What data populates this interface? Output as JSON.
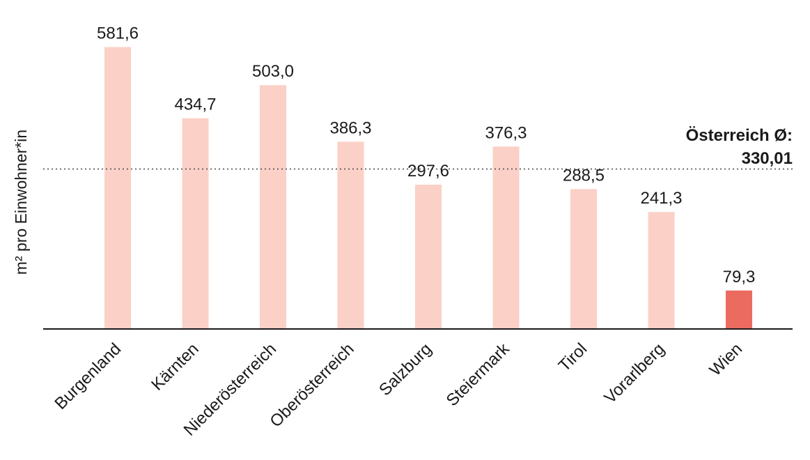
{
  "chart_data": {
    "type": "bar",
    "categories": [
      "Burgenland",
      "Kärnten",
      "Niederösterreich",
      "Oberösterreich",
      "Salzburg",
      "Steiermark",
      "Tirol",
      "Vorarlberg",
      "Wien"
    ],
    "values": [
      581.6,
      434.7,
      503.0,
      386.3,
      297.6,
      376.3,
      288.5,
      241.3,
      79.3
    ],
    "value_labels": [
      "581,6",
      "434,7",
      "503,0",
      "386,3",
      "297,6",
      "376,3",
      "288,5",
      "241,3",
      "79,3"
    ],
    "ylabel": "m² pro Einwohner*in",
    "ylim": [
      0,
      650
    ],
    "grid": false,
    "reference_line": {
      "value": 330.01,
      "label_line1": "Österreich Ø:",
      "label_line2": "330,01"
    },
    "colors": {
      "default_bar": "#fbd0c7",
      "highlight_bar": "#ec6b60",
      "axis": "#1a1a1a",
      "reference_line": "#444444"
    },
    "highlight_category": "Wien"
  }
}
